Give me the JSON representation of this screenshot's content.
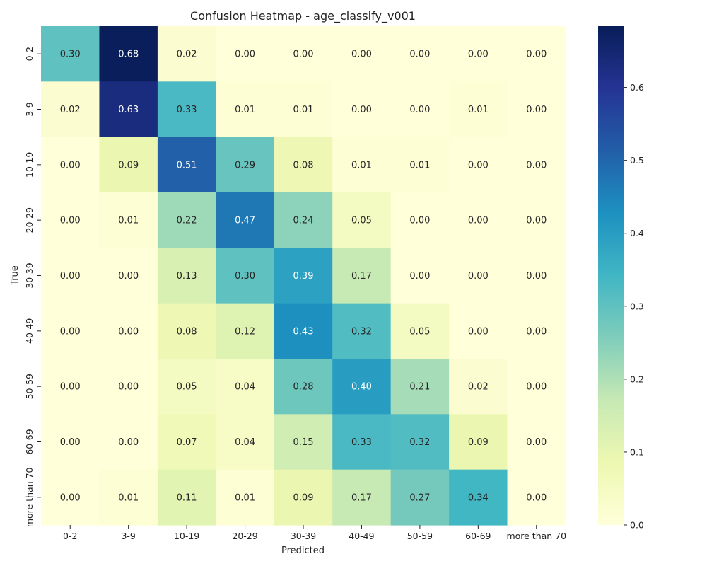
{
  "chart_data": {
    "type": "heatmap",
    "title": "Confusion Heatmap - age_classify_v001",
    "xlabel": "Predicted",
    "ylabel": "True",
    "x_categories": [
      "0-2",
      "3-9",
      "10-19",
      "20-29",
      "30-39",
      "40-49",
      "50-59",
      "60-69",
      "more than 70"
    ],
    "y_categories": [
      "0-2",
      "3-9",
      "10-19",
      "20-29",
      "30-39",
      "40-49",
      "50-59",
      "60-69",
      "more than 70"
    ],
    "values": [
      [
        0.3,
        0.68,
        0.02,
        0.0,
        0.0,
        0.0,
        0.0,
        0.0,
        0.0
      ],
      [
        0.02,
        0.63,
        0.33,
        0.01,
        0.01,
        0.0,
        0.0,
        0.01,
        0.0
      ],
      [
        0.0,
        0.09,
        0.51,
        0.29,
        0.08,
        0.01,
        0.01,
        0.0,
        0.0
      ],
      [
        0.0,
        0.01,
        0.22,
        0.47,
        0.24,
        0.05,
        0.0,
        0.0,
        0.0
      ],
      [
        0.0,
        0.0,
        0.13,
        0.3,
        0.39,
        0.17,
        0.0,
        0.0,
        0.0
      ],
      [
        0.0,
        0.0,
        0.08,
        0.12,
        0.43,
        0.32,
        0.05,
        0.0,
        0.0
      ],
      [
        0.0,
        0.0,
        0.05,
        0.04,
        0.28,
        0.4,
        0.21,
        0.02,
        0.0
      ],
      [
        0.0,
        0.0,
        0.07,
        0.04,
        0.15,
        0.33,
        0.32,
        0.09,
        0.0
      ],
      [
        0.0,
        0.01,
        0.11,
        0.01,
        0.09,
        0.17,
        0.27,
        0.34,
        0.0
      ]
    ],
    "colormap": "YlGnBu",
    "colorbar": {
      "min": 0.0,
      "max": 0.684,
      "ticks": [
        0.0,
        0.1,
        0.2,
        0.3,
        0.4,
        0.5,
        0.6
      ],
      "tick_labels": [
        "0.0",
        "0.1",
        "0.2",
        "0.3",
        "0.4",
        "0.5",
        "0.6"
      ]
    },
    "grid": false,
    "legend": "colorbar-right"
  }
}
